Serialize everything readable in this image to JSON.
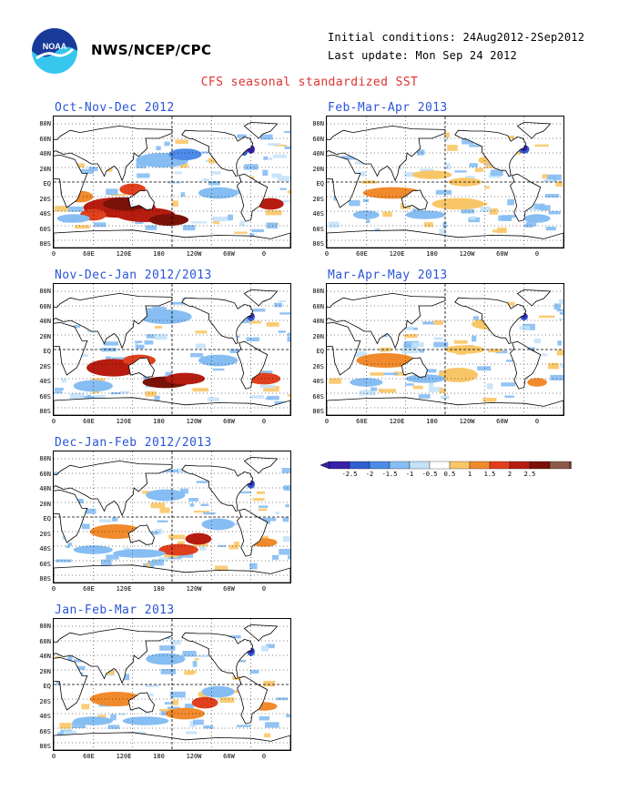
{
  "header": {
    "agency": "NWS/NCEP/CPC",
    "initial_conditions": "Initial conditions: 24Aug2012-2Sep2012",
    "last_update": "Last update: Mon Sep 24 2012",
    "title": "CFS seasonal standardized SST",
    "logo_text": "NOAA"
  },
  "panels": [
    {
      "id": "ond",
      "title": "Oct-Nov-Dec 2012",
      "intensity": 1.0
    },
    {
      "id": "fma",
      "title": "Feb-Mar-Apr 2013",
      "intensity": 0.6
    },
    {
      "id": "ndj",
      "title": "Nov-Dec-Jan 2012/2013",
      "intensity": 0.9
    },
    {
      "id": "mam",
      "title": "Mar-Apr-May 2013",
      "intensity": 0.55
    },
    {
      "id": "djf",
      "title": "Dec-Jan-Feb 2012/2013",
      "intensity": 0.75
    },
    {
      "id": "jfm",
      "title": "Jan-Feb-Mar 2013",
      "intensity": 0.65
    }
  ],
  "lat_labels": [
    "80N",
    "60N",
    "40N",
    "20N",
    "EQ",
    "20S",
    "40S",
    "60S",
    "80S"
  ],
  "lon_labels": [
    "0",
    "60E",
    "120E",
    "180",
    "120W",
    "60W",
    "0"
  ],
  "colorbar": {
    "labels": [
      "-2.5",
      "-2",
      "-1.5",
      "-1",
      "-0.5",
      "0.5",
      "1",
      "1.5",
      "2",
      "2.5"
    ],
    "colors": [
      "#3a1fa8",
      "#2f5fd0",
      "#4c8be8",
      "#86bdf2",
      "#c4e2fa",
      "#ffffff",
      "#f9c667",
      "#f08a2c",
      "#e0401e",
      "#b71c10",
      "#7a1208",
      "#8b5a4a"
    ]
  }
}
